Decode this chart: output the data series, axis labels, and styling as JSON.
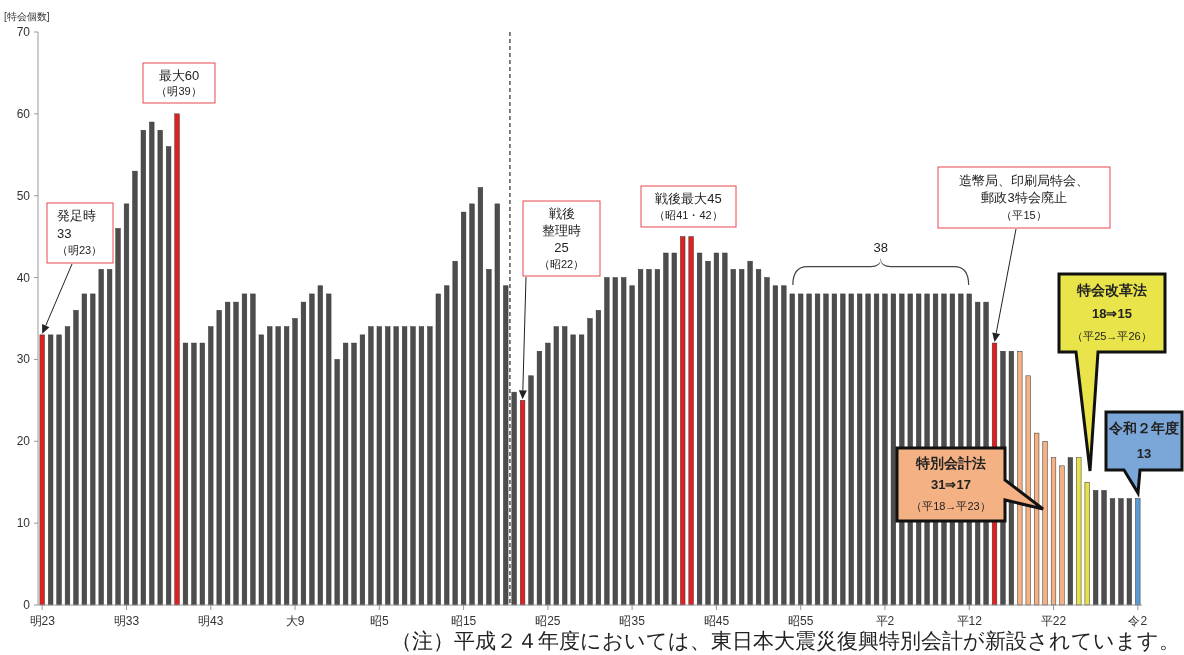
{
  "chart_data": {
    "type": "bar",
    "ylabel": "[特会個数]",
    "categories": [
      "明23",
      null,
      null,
      null,
      null,
      null,
      null,
      null,
      null,
      null,
      "明33",
      null,
      null,
      null,
      null,
      null,
      null,
      null,
      null,
      null,
      "明43",
      null,
      null,
      null,
      null,
      null,
      null,
      null,
      null,
      null,
      "大9",
      null,
      null,
      null,
      null,
      null,
      null,
      null,
      null,
      null,
      "昭5",
      null,
      null,
      null,
      null,
      null,
      null,
      null,
      null,
      null,
      "昭15",
      null,
      null,
      null,
      null,
      null,
      null,
      null,
      null,
      null,
      "昭25",
      null,
      null,
      null,
      null,
      null,
      null,
      null,
      null,
      null,
      "昭35",
      null,
      null,
      null,
      null,
      null,
      null,
      null,
      null,
      null,
      "昭45",
      null,
      null,
      null,
      null,
      null,
      null,
      null,
      null,
      null,
      "昭55",
      null,
      null,
      null,
      null,
      null,
      null,
      null,
      null,
      null,
      "平2",
      null,
      null,
      null,
      null,
      null,
      null,
      null,
      null,
      null,
      "平12",
      null,
      null,
      null,
      null,
      null,
      null,
      null,
      null,
      null,
      "平22",
      null,
      null,
      null,
      null,
      null,
      null,
      null,
      null,
      null,
      "令2"
    ],
    "values": [
      33,
      33,
      33,
      34,
      36,
      38,
      38,
      41,
      41,
      46,
      49,
      53,
      58,
      59,
      58,
      56,
      60,
      32,
      32,
      32,
      34,
      36,
      37,
      37,
      38,
      38,
      33,
      34,
      34,
      34,
      35,
      37,
      38,
      39,
      38,
      30,
      32,
      32,
      33,
      34,
      34,
      34,
      34,
      34,
      34,
      34,
      34,
      38,
      39,
      42,
      48,
      49,
      51,
      41,
      49,
      39,
      26,
      25,
      28,
      31,
      32,
      34,
      34,
      33,
      33,
      35,
      36,
      40,
      40,
      40,
      39,
      41,
      41,
      41,
      43,
      43,
      45,
      45,
      43,
      42,
      43,
      43,
      41,
      41,
      42,
      41,
      40,
      39,
      39,
      38,
      38,
      38,
      38,
      38,
      38,
      38,
      38,
      38,
      38,
      38,
      38,
      38,
      38,
      38,
      38,
      38,
      38,
      38,
      38,
      38,
      38,
      37,
      37,
      32,
      31,
      31,
      31,
      28,
      21,
      20,
      18,
      17,
      18,
      18,
      15,
      14,
      14,
      13,
      13,
      13,
      13
    ],
    "colors": [
      "#e02020",
      "#4d4d4d",
      "#4d4d4d",
      "#4d4d4d",
      "#4d4d4d",
      "#4d4d4d",
      "#4d4d4d",
      "#4d4d4d",
      "#4d4d4d",
      "#4d4d4d",
      "#4d4d4d",
      "#4d4d4d",
      "#4d4d4d",
      "#4d4d4d",
      "#4d4d4d",
      "#4d4d4d",
      "#e02020",
      "#4d4d4d",
      "#4d4d4d",
      "#4d4d4d",
      "#4d4d4d",
      "#4d4d4d",
      "#4d4d4d",
      "#4d4d4d",
      "#4d4d4d",
      "#4d4d4d",
      "#4d4d4d",
      "#4d4d4d",
      "#4d4d4d",
      "#4d4d4d",
      "#4d4d4d",
      "#4d4d4d",
      "#4d4d4d",
      "#4d4d4d",
      "#4d4d4d",
      "#4d4d4d",
      "#4d4d4d",
      "#4d4d4d",
      "#4d4d4d",
      "#4d4d4d",
      "#4d4d4d",
      "#4d4d4d",
      "#4d4d4d",
      "#4d4d4d",
      "#4d4d4d",
      "#4d4d4d",
      "#4d4d4d",
      "#4d4d4d",
      "#4d4d4d",
      "#4d4d4d",
      "#4d4d4d",
      "#4d4d4d",
      "#4d4d4d",
      "#4d4d4d",
      "#4d4d4d",
      "#4d4d4d",
      "#4d4d4d",
      "#e02020",
      "#4d4d4d",
      "#4d4d4d",
      "#4d4d4d",
      "#4d4d4d",
      "#4d4d4d",
      "#4d4d4d",
      "#4d4d4d",
      "#4d4d4d",
      "#4d4d4d",
      "#4d4d4d",
      "#4d4d4d",
      "#4d4d4d",
      "#4d4d4d",
      "#4d4d4d",
      "#4d4d4d",
      "#4d4d4d",
      "#4d4d4d",
      "#4d4d4d",
      "#e02020",
      "#e02020",
      "#4d4d4d",
      "#4d4d4d",
      "#4d4d4d",
      "#4d4d4d",
      "#4d4d4d",
      "#4d4d4d",
      "#4d4d4d",
      "#4d4d4d",
      "#4d4d4d",
      "#4d4d4d",
      "#4d4d4d",
      "#4d4d4d",
      "#4d4d4d",
      "#4d4d4d",
      "#4d4d4d",
      "#4d4d4d",
      "#4d4d4d",
      "#4d4d4d",
      "#4d4d4d",
      "#4d4d4d",
      "#4d4d4d",
      "#4d4d4d",
      "#4d4d4d",
      "#4d4d4d",
      "#4d4d4d",
      "#4d4d4d",
      "#4d4d4d",
      "#4d4d4d",
      "#4d4d4d",
      "#4d4d4d",
      "#4d4d4d",
      "#4d4d4d",
      "#4d4d4d",
      "#4d4d4d",
      "#4d4d4d",
      "#e02020",
      "#4d4d4d",
      "#4d4d4d",
      "#f4b183",
      "#f4b183",
      "#f4b183",
      "#f4b183",
      "#f4b183",
      "#f4b183",
      "#4d4d4d",
      "#e6e04a",
      "#e6e04a",
      "#4d4d4d",
      "#4d4d4d",
      "#4d4d4d",
      "#4d4d4d",
      "#4d4d4d",
      "#5b9bd5"
    ],
    "ylim": [
      0,
      70
    ],
    "yticks": [
      0,
      10,
      20,
      30,
      40,
      50,
      60,
      70
    ],
    "grid": false,
    "annotations": [
      "発足時\n33\n（明23）",
      "最大60\n（明39）",
      "戦後整理時\n25\n（昭22）",
      "戦後最大45\n（昭41・42）",
      "38",
      "造幣局、印刷局特会、郵政3特会廃止（平15）",
      "特別会計法\n31⇒17\n（平18→平23）",
      "特会改革法\n18⇒15\n（平25→平26）",
      "令和２年度\n13",
      "（注）平成２４年度においては、東日本大震災復興特別会計が新設されています。"
    ]
  }
}
